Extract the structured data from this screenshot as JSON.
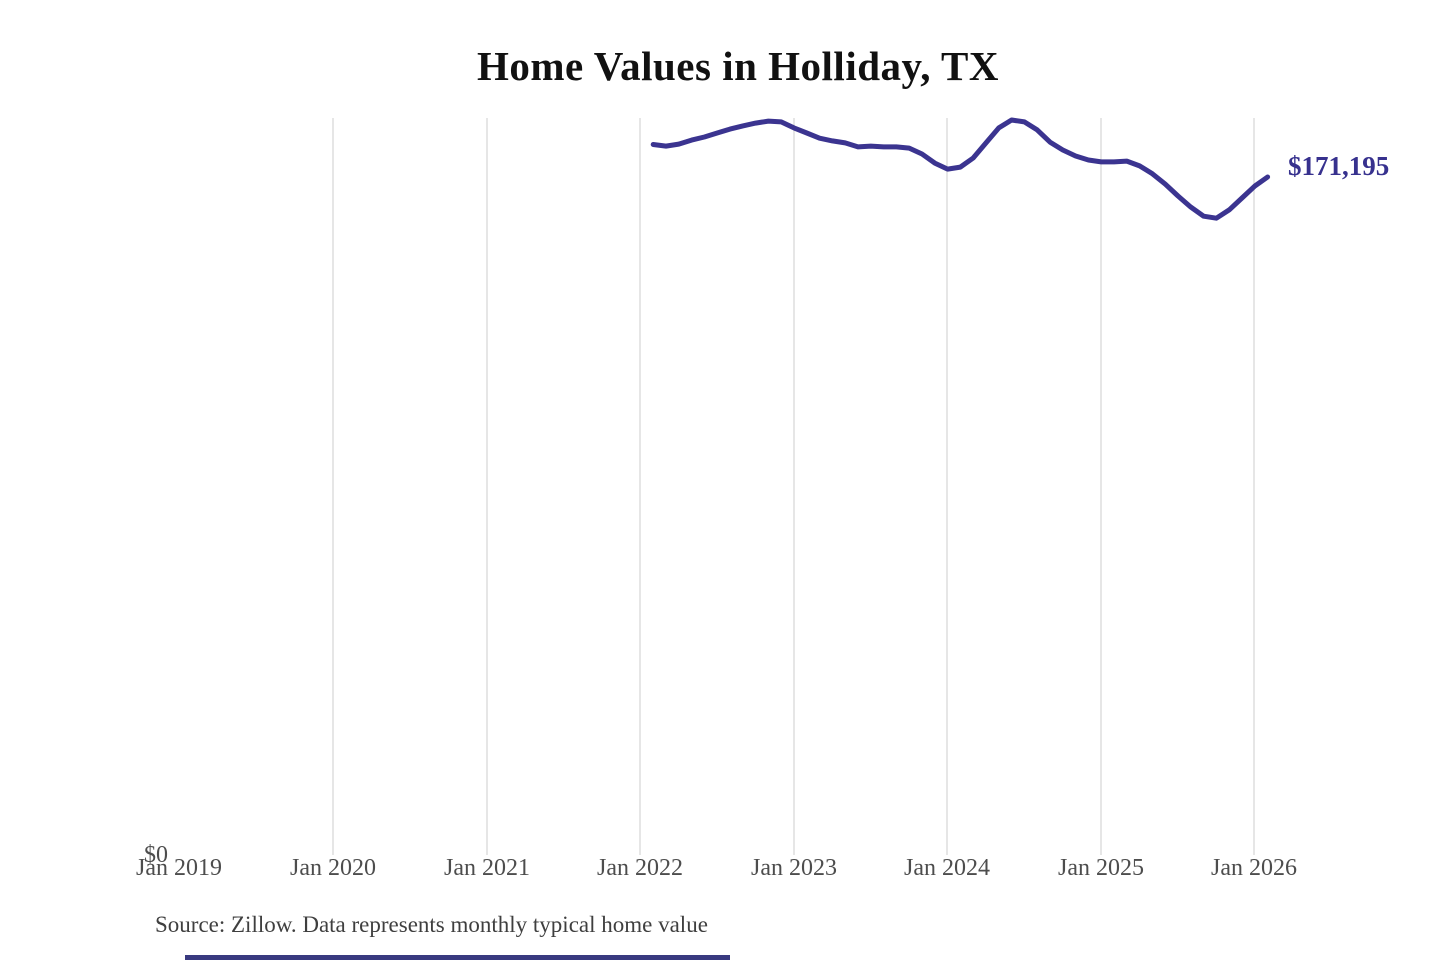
{
  "title": "Home Values in Holliday, TX",
  "source_note": "Source: Zillow. Data represents monthly typical home value",
  "colors": {
    "line": "#3b3490",
    "end_label": "#37318e",
    "gridline": "#cccccc",
    "title": "#111111",
    "tick_label": "#4d4d4d",
    "source": "#3f3f3f"
  },
  "chart_data": {
    "type": "line",
    "title": "Home Values in Holliday, TX",
    "xlabel": "",
    "ylabel": "",
    "legend": "none",
    "grid": "vertical-only",
    "y_origin_label": "$0",
    "end_value_label": "$171,195",
    "final_value": 171195,
    "ylim": [
      0,
      200000
    ],
    "x_tick_labels": [
      "Jan 2019",
      "Jan 2020",
      "Jan 2021",
      "Jan 2022",
      "Jan 2023",
      "Jan 2024",
      "Jan 2025",
      "Jan 2026"
    ],
    "series_name": "Monthly typical home value",
    "x": [
      "2022-01",
      "2022-02",
      "2022-03",
      "2022-04",
      "2022-05",
      "2022-06",
      "2022-07",
      "2022-08",
      "2022-09",
      "2022-10",
      "2022-11",
      "2022-12",
      "2023-01",
      "2023-02",
      "2023-03",
      "2023-04",
      "2023-05",
      "2023-06",
      "2023-07",
      "2023-08",
      "2023-09",
      "2023-10",
      "2023-11",
      "2023-12",
      "2024-01",
      "2024-02",
      "2024-03",
      "2024-04",
      "2024-05",
      "2024-06",
      "2024-07",
      "2024-08",
      "2024-09",
      "2024-10",
      "2024-11",
      "2024-12",
      "2025-01",
      "2025-02",
      "2025-03",
      "2025-04",
      "2025-05",
      "2025-06",
      "2025-07",
      "2025-08",
      "2025-09",
      "2025-10",
      "2025-11",
      "2025-12",
      "2026-01"
    ],
    "values": [
      179400,
      179000,
      179500,
      180500,
      181300,
      182300,
      183300,
      184100,
      184800,
      185300,
      185100,
      183600,
      182300,
      181000,
      180300,
      179800,
      178800,
      179000,
      178800,
      178800,
      178500,
      177000,
      174700,
      173200,
      173700,
      176000,
      179800,
      183600,
      185600,
      185100,
      183100,
      180000,
      178000,
      176500,
      175500,
      175000,
      175000,
      175200,
      174000,
      172000,
      169400,
      166400,
      163600,
      161300,
      160800,
      162900,
      165900,
      168900,
      171195
    ]
  }
}
